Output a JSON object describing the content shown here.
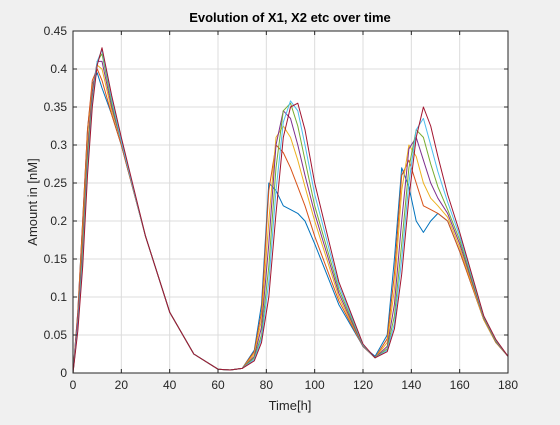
{
  "chart_data": {
    "type": "line",
    "title": "Evolution of X1, X2 etc over time",
    "xlabel": "Time[h]",
    "ylabel": "Amount in [nM]",
    "xlim": [
      0,
      180
    ],
    "ylim": [
      0,
      0.45
    ],
    "xticks": [
      0,
      20,
      40,
      60,
      80,
      100,
      120,
      140,
      160,
      180
    ],
    "yticks": [
      0,
      0.05,
      0.1,
      0.15,
      0.2,
      0.25,
      0.3,
      0.35,
      0.4,
      0.45
    ],
    "xtick_labels": [
      "0",
      "20",
      "40",
      "60",
      "80",
      "100",
      "120",
      "140",
      "160",
      "180"
    ],
    "ytick_labels": [
      "0",
      "0.05",
      "0.1",
      "0.15",
      "0.2",
      "0.25",
      "0.3",
      "0.35",
      "0.4",
      "0.45"
    ],
    "grid": true,
    "legend": "none",
    "colors": [
      "#0072bd",
      "#d95319",
      "#edb120",
      "#7e2f8e",
      "#77ac30",
      "#4dbeee",
      "#a2142f"
    ],
    "series": [
      {
        "x": [
          0,
          2,
          4,
          6,
          8,
          10,
          12,
          16,
          20,
          30,
          40,
          50,
          60,
          65,
          70,
          75,
          78,
          81,
          84,
          87,
          90,
          93,
          96,
          100,
          110,
          120,
          125,
          130,
          133,
          136,
          139,
          142,
          145,
          148,
          151,
          155,
          160,
          170,
          175,
          180
        ],
        "y": [
          0,
          0.08,
          0.2,
          0.32,
          0.38,
          0.395,
          0.375,
          0.34,
          0.3,
          0.18,
          0.08,
          0.025,
          0.005,
          0.004,
          0.006,
          0.03,
          0.09,
          0.25,
          0.24,
          0.22,
          0.215,
          0.21,
          0.2,
          0.17,
          0.09,
          0.035,
          0.022,
          0.05,
          0.15,
          0.27,
          0.245,
          0.2,
          0.185,
          0.2,
          0.21,
          0.2,
          0.16,
          0.07,
          0.04,
          0.022
        ]
      },
      {
        "x": [
          0,
          2,
          4,
          6,
          8,
          10,
          12,
          16,
          20,
          30,
          40,
          50,
          60,
          65,
          70,
          75,
          78,
          81,
          84,
          87,
          90,
          93,
          96,
          100,
          110,
          120,
          125,
          130,
          133,
          136,
          139,
          142,
          145,
          148,
          151,
          155,
          160,
          170,
          175,
          180
        ],
        "y": [
          0,
          0.08,
          0.2,
          0.32,
          0.385,
          0.4,
          0.385,
          0.34,
          0.3,
          0.18,
          0.08,
          0.025,
          0.005,
          0.004,
          0.006,
          0.028,
          0.08,
          0.24,
          0.3,
          0.29,
          0.27,
          0.245,
          0.22,
          0.18,
          0.095,
          0.035,
          0.02,
          0.045,
          0.13,
          0.26,
          0.28,
          0.25,
          0.22,
          0.215,
          0.21,
          0.2,
          0.16,
          0.07,
          0.04,
          0.022
        ]
      },
      {
        "x": [
          0,
          2,
          4,
          6,
          8,
          10,
          12,
          16,
          20,
          30,
          40,
          50,
          60,
          65,
          70,
          75,
          78,
          81,
          84,
          87,
          90,
          93,
          96,
          100,
          110,
          120,
          125,
          130,
          133,
          136,
          139,
          142,
          145,
          148,
          151,
          155,
          160,
          170,
          175,
          180
        ],
        "y": [
          0,
          0.07,
          0.18,
          0.3,
          0.375,
          0.405,
          0.4,
          0.345,
          0.305,
          0.18,
          0.08,
          0.025,
          0.005,
          0.004,
          0.006,
          0.025,
          0.07,
          0.2,
          0.31,
          0.325,
          0.31,
          0.28,
          0.245,
          0.2,
          0.1,
          0.035,
          0.02,
          0.04,
          0.11,
          0.24,
          0.3,
          0.285,
          0.25,
          0.23,
          0.22,
          0.205,
          0.165,
          0.07,
          0.04,
          0.022
        ]
      },
      {
        "x": [
          0,
          2,
          4,
          6,
          8,
          10,
          12,
          16,
          20,
          30,
          40,
          50,
          60,
          65,
          70,
          75,
          78,
          81,
          84,
          87,
          90,
          93,
          96,
          100,
          110,
          120,
          125,
          130,
          133,
          136,
          139,
          142,
          145,
          148,
          151,
          155,
          160,
          170,
          175,
          180
        ],
        "y": [
          0,
          0.07,
          0.17,
          0.29,
          0.37,
          0.41,
          0.41,
          0.35,
          0.305,
          0.18,
          0.08,
          0.025,
          0.005,
          0.004,
          0.006,
          0.022,
          0.06,
          0.17,
          0.3,
          0.345,
          0.335,
          0.3,
          0.26,
          0.21,
          0.105,
          0.035,
          0.02,
          0.035,
          0.09,
          0.2,
          0.295,
          0.31,
          0.28,
          0.25,
          0.23,
          0.21,
          0.17,
          0.072,
          0.041,
          0.022
        ]
      },
      {
        "x": [
          0,
          2,
          4,
          6,
          8,
          10,
          12,
          16,
          20,
          30,
          40,
          50,
          60,
          65,
          70,
          75,
          78,
          81,
          84,
          87,
          90,
          93,
          96,
          100,
          110,
          120,
          125,
          130,
          133,
          136,
          139,
          142,
          145,
          148,
          151,
          155,
          160,
          170,
          175,
          180
        ],
        "y": [
          0,
          0.06,
          0.16,
          0.28,
          0.36,
          0.41,
          0.42,
          0.355,
          0.305,
          0.18,
          0.08,
          0.025,
          0.005,
          0.004,
          0.006,
          0.02,
          0.05,
          0.14,
          0.27,
          0.345,
          0.355,
          0.325,
          0.28,
          0.22,
          0.11,
          0.036,
          0.02,
          0.032,
          0.075,
          0.17,
          0.27,
          0.32,
          0.31,
          0.275,
          0.245,
          0.215,
          0.175,
          0.073,
          0.042,
          0.022
        ]
      },
      {
        "x": [
          0,
          2,
          4,
          6,
          8,
          10,
          12,
          16,
          20,
          30,
          40,
          50,
          60,
          65,
          70,
          75,
          78,
          81,
          84,
          87,
          90,
          93,
          96,
          100,
          110,
          120,
          125,
          130,
          133,
          136,
          139,
          142,
          145,
          148,
          151,
          155,
          160,
          170,
          175,
          180
        ],
        "y": [
          0,
          0.06,
          0.15,
          0.27,
          0.355,
          0.41,
          0.425,
          0.36,
          0.305,
          0.18,
          0.08,
          0.025,
          0.005,
          0.004,
          0.006,
          0.018,
          0.045,
          0.12,
          0.24,
          0.33,
          0.358,
          0.345,
          0.3,
          0.235,
          0.115,
          0.037,
          0.02,
          0.03,
          0.065,
          0.15,
          0.25,
          0.32,
          0.335,
          0.3,
          0.265,
          0.225,
          0.18,
          0.074,
          0.043,
          0.022
        ]
      },
      {
        "x": [
          0,
          2,
          4,
          6,
          8,
          10,
          12,
          16,
          20,
          30,
          40,
          50,
          60,
          65,
          70,
          75,
          78,
          81,
          84,
          87,
          90,
          93,
          96,
          100,
          110,
          120,
          125,
          130,
          133,
          136,
          139,
          142,
          145,
          148,
          151,
          155,
          160,
          170,
          175,
          180
        ],
        "y": [
          0,
          0.055,
          0.14,
          0.26,
          0.35,
          0.405,
          0.428,
          0.365,
          0.31,
          0.18,
          0.08,
          0.025,
          0.005,
          0.004,
          0.006,
          0.016,
          0.04,
          0.1,
          0.21,
          0.31,
          0.35,
          0.355,
          0.32,
          0.25,
          0.12,
          0.038,
          0.02,
          0.028,
          0.058,
          0.13,
          0.23,
          0.31,
          0.35,
          0.325,
          0.285,
          0.235,
          0.185,
          0.075,
          0.044,
          0.022
        ]
      }
    ]
  }
}
